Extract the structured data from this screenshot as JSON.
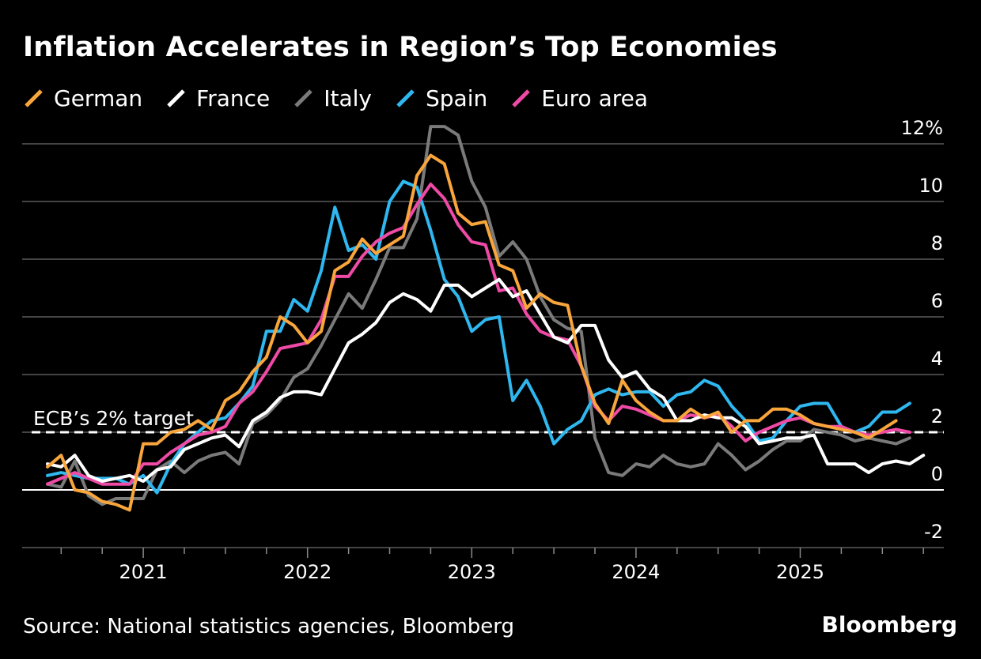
{
  "header": {
    "title": "Inflation Accelerates in Region’s Top Economies"
  },
  "legend": [
    {
      "name": "German",
      "color": "#f8a53c"
    },
    {
      "name": "France",
      "color": "#ffffff"
    },
    {
      "name": "Italy",
      "color": "#7a7a7a"
    },
    {
      "name": "Spain",
      "color": "#2fb7ef"
    },
    {
      "name": "Euro area",
      "color": "#ee4aa6"
    }
  ],
  "footer": {
    "source": "Source: National statistics agencies, Bloomberg",
    "brand": "Bloomberg"
  },
  "chart_data": {
    "type": "line",
    "title": "Inflation Accelerates in Region’s Top Economies",
    "xlabel": "",
    "ylabel": "",
    "x_start": "2020-06",
    "x_ticks": [
      "2021",
      "2022",
      "2023",
      "2024",
      "2025"
    ],
    "y_ticks": [
      "12%",
      "10",
      "8",
      "6",
      "4",
      "2",
      "0",
      "-2"
    ],
    "y_tick_values": [
      12,
      10,
      8,
      6,
      4,
      2,
      0,
      -2
    ],
    "ylim": [
      -2,
      12.8
    ],
    "reference_line": {
      "value": 2,
      "label": "ECB’s 2% target",
      "style": "dashed"
    },
    "series": [
      {
        "name": "German",
        "color": "#f8a53c",
        "values": [
          0.8,
          1.2,
          0.0,
          -0.1,
          -0.4,
          -0.5,
          -0.7,
          1.6,
          1.6,
          2.0,
          2.1,
          2.4,
          2.1,
          3.1,
          3.4,
          4.1,
          4.6,
          6.0,
          5.7,
          5.1,
          5.5,
          7.6,
          7.9,
          8.7,
          8.2,
          8.5,
          8.8,
          10.9,
          11.6,
          11.3,
          9.6,
          9.2,
          9.3,
          7.8,
          7.6,
          6.3,
          6.8,
          6.5,
          6.4,
          4.3,
          3.0,
          2.3,
          3.8,
          3.1,
          2.7,
          2.4,
          2.4,
          2.8,
          2.5,
          2.7,
          2.0,
          2.4,
          2.4,
          2.8,
          2.8,
          2.6,
          2.3,
          2.2,
          2.1,
          2.0,
          1.8,
          2.1,
          2.4
        ]
      },
      {
        "name": "France",
        "color": "#ffffff",
        "values": [
          0.9,
          0.8,
          1.2,
          0.5,
          0.3,
          0.4,
          0.5,
          0.3,
          0.7,
          0.8,
          1.4,
          1.6,
          1.8,
          1.9,
          1.5,
          2.4,
          2.7,
          3.2,
          3.4,
          3.4,
          3.3,
          4.2,
          5.1,
          5.4,
          5.8,
          6.5,
          6.8,
          6.6,
          6.2,
          7.1,
          7.1,
          6.7,
          7.0,
          7.3,
          6.7,
          6.9,
          6.1,
          5.3,
          5.1,
          5.7,
          5.7,
          4.5,
          3.9,
          4.1,
          3.5,
          3.2,
          2.4,
          2.4,
          2.6,
          2.5,
          2.5,
          2.2,
          1.6,
          1.7,
          1.8,
          1.8,
          1.9,
          0.9,
          0.9,
          0.9,
          0.6,
          0.9,
          1.0,
          0.9,
          1.2
        ]
      },
      {
        "name": "Italy",
        "color": "#7a7a7a",
        "values": [
          0.2,
          0.1,
          1.0,
          -0.2,
          -0.5,
          -0.3,
          -0.3,
          -0.3,
          0.7,
          1.0,
          0.6,
          1.0,
          1.2,
          1.3,
          0.9,
          2.3,
          2.6,
          3.1,
          3.9,
          4.2,
          5.0,
          5.9,
          6.8,
          6.3,
          7.3,
          8.4,
          8.4,
          9.4,
          12.6,
          12.6,
          12.3,
          10.7,
          9.8,
          8.1,
          8.6,
          8.0,
          6.7,
          5.9,
          5.6,
          5.5,
          1.8,
          0.6,
          0.5,
          0.9,
          0.8,
          1.2,
          0.9,
          0.8,
          0.9,
          1.6,
          1.2,
          0.7,
          1.0,
          1.4,
          1.7,
          1.7,
          2.1,
          2.0,
          1.9,
          1.7,
          1.8,
          1.7,
          1.6,
          1.8
        ]
      },
      {
        "name": "Spain",
        "color": "#2fb7ef",
        "values": [
          0.5,
          0.6,
          0.5,
          0.4,
          0.4,
          0.4,
          0.2,
          0.5,
          -0.1,
          0.9,
          1.6,
          2.0,
          2.4,
          2.5,
          3.0,
          3.6,
          5.5,
          5.5,
          6.6,
          6.2,
          7.6,
          9.8,
          8.3,
          8.5,
          8.0,
          10.0,
          10.7,
          10.5,
          9.0,
          7.3,
          6.7,
          5.5,
          5.9,
          6.0,
          3.1,
          3.8,
          2.9,
          1.6,
          2.1,
          2.4,
          3.3,
          3.5,
          3.3,
          3.4,
          3.4,
          2.9,
          3.3,
          3.4,
          3.8,
          3.6,
          2.9,
          2.4,
          1.7,
          1.8,
          2.4,
          2.9,
          3.0,
          3.0,
          2.2,
          2.0,
          2.2,
          2.7,
          2.7,
          3.0
        ]
      },
      {
        "name": "Euro area",
        "color": "#ee4aa6",
        "values": [
          0.2,
          0.4,
          0.6,
          0.4,
          0.2,
          0.2,
          0.2,
          0.9,
          0.9,
          1.3,
          1.6,
          1.9,
          2.0,
          2.2,
          3.0,
          3.4,
          4.1,
          4.9,
          5.0,
          5.1,
          5.9,
          7.4,
          7.4,
          8.1,
          8.6,
          8.9,
          9.1,
          9.9,
          10.6,
          10.1,
          9.2,
          8.6,
          8.5,
          6.9,
          7.0,
          6.1,
          5.5,
          5.3,
          5.2,
          4.3,
          2.9,
          2.4,
          2.9,
          2.8,
          2.6,
          2.4,
          2.4,
          2.6,
          2.5,
          2.6,
          2.2,
          1.7,
          2.0,
          2.2,
          2.4,
          2.5,
          2.3,
          2.2,
          2.2,
          2.0,
          1.9,
          2.0,
          2.1,
          2.0
        ]
      }
    ]
  }
}
